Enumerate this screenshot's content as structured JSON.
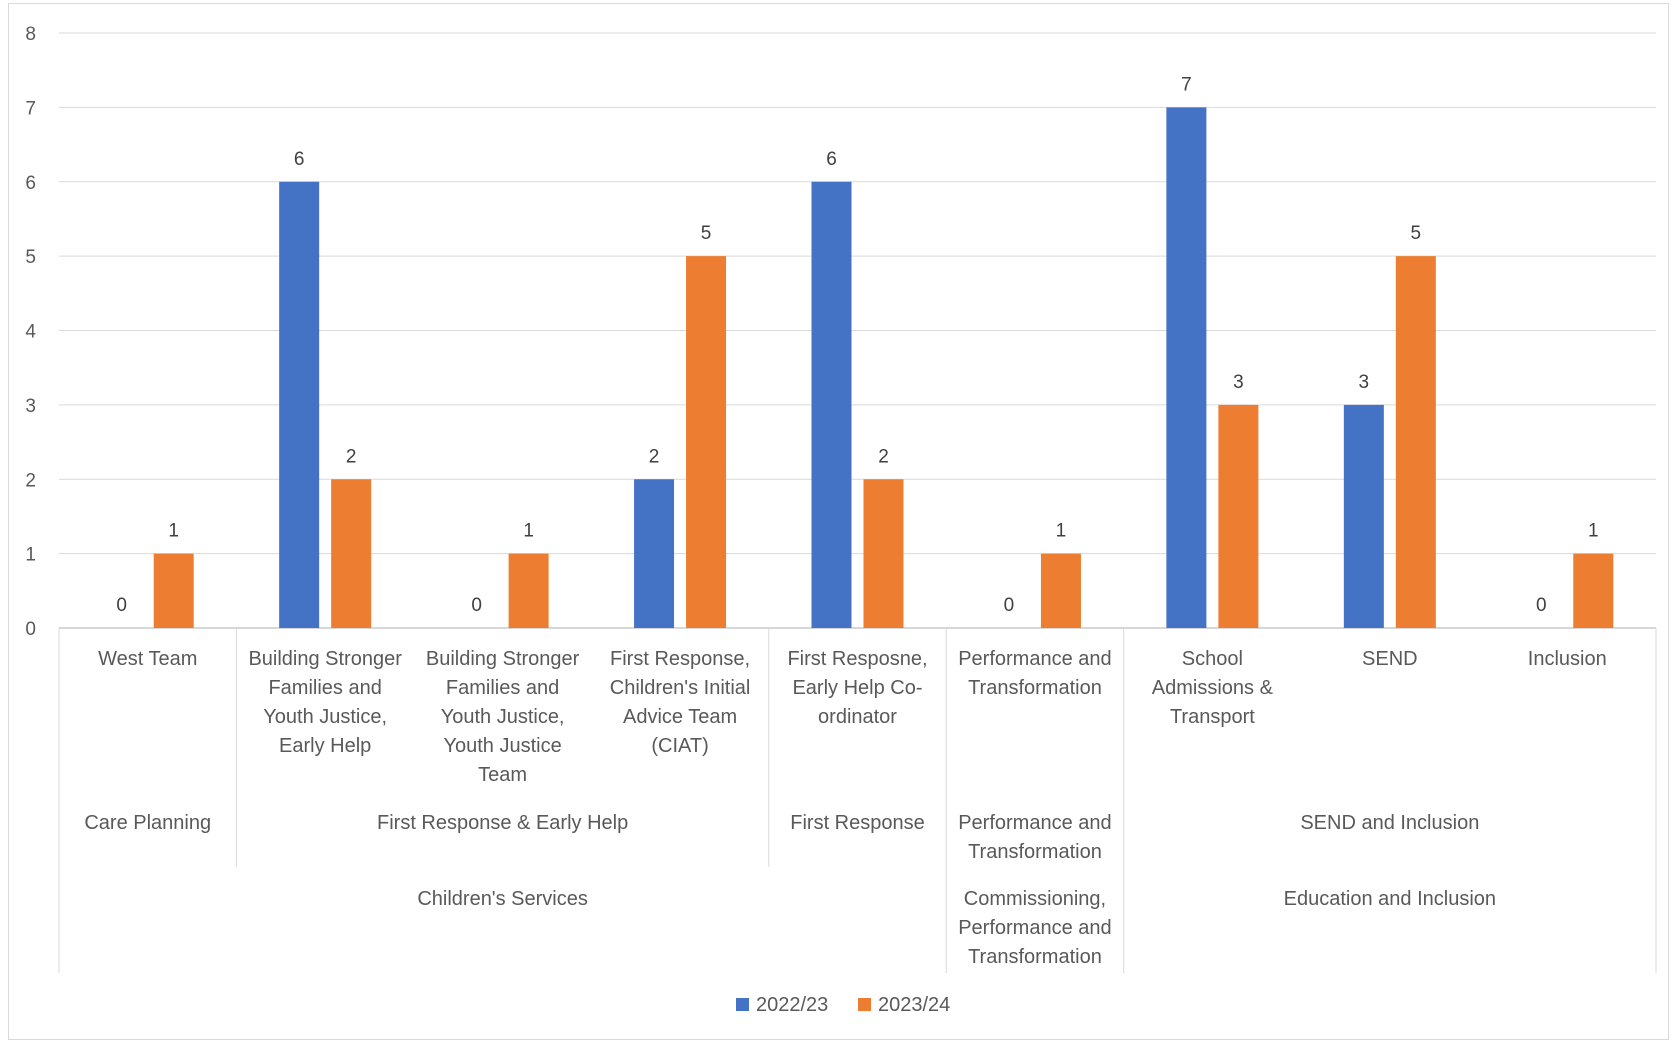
{
  "chart_data": {
    "type": "bar",
    "title": "",
    "xlabel": "",
    "ylabel": "",
    "ylim": [
      0,
      8
    ],
    "yticks": [
      0,
      1,
      2,
      3,
      4,
      5,
      6,
      7,
      8
    ],
    "grid": true,
    "legend_position": "bottom",
    "categories": [
      {
        "label": [
          "West Team"
        ],
        "parent": [
          "Care Planning"
        ]
      },
      {
        "label": [
          "Building Stronger",
          "Families and",
          "Youth Justice,",
          "Early Help"
        ],
        "parent": [
          "First Response & Early Help"
        ]
      },
      {
        "label": [
          "Building Stronger",
          "Families and",
          "Youth Justice,",
          "Youth Justice",
          "Team"
        ],
        "parent": [
          "First Response & Early Help"
        ]
      },
      {
        "label": [
          "First Response,",
          "Children's Initial",
          "Advice Team",
          "(CIAT)"
        ],
        "parent": [
          "First Response & Early Help"
        ]
      },
      {
        "label": [
          "First Resposne,",
          "Early Help Co-",
          "ordinator"
        ],
        "parent": [
          "First Response"
        ]
      },
      {
        "label": [
          "Performance and",
          "Transformation"
        ],
        "parent": [
          "Performance and",
          "Transformation"
        ]
      },
      {
        "label": [
          "School",
          "Admissions &",
          "Transport"
        ],
        "parent": [
          "SEND and Inclusion"
        ]
      },
      {
        "label": [
          "SEND"
        ],
        "parent": [
          "SEND and Inclusion"
        ]
      },
      {
        "label": [
          "Inclusion"
        ],
        "parent": [
          "SEND and Inclusion"
        ]
      }
    ],
    "level2_groups": [
      {
        "label": [
          "Care Planning"
        ],
        "from": 0,
        "to": 0
      },
      {
        "label": [
          "First Response & Early Help"
        ],
        "from": 1,
        "to": 3
      },
      {
        "label": [
          "First Response"
        ],
        "from": 4,
        "to": 4
      },
      {
        "label": [
          "Performance and",
          "Transformation"
        ],
        "from": 5,
        "to": 5
      },
      {
        "label": [
          "SEND and Inclusion"
        ],
        "from": 6,
        "to": 8
      }
    ],
    "level3_groups": [
      {
        "label": [
          "Children's Services"
        ],
        "from": 0,
        "to": 4
      },
      {
        "label": [
          "Commissioning,",
          "Performance and",
          "Transformation"
        ],
        "from": 5,
        "to": 5
      },
      {
        "label": [
          "Education and Inclusion"
        ],
        "from": 6,
        "to": 8
      }
    ],
    "series": [
      {
        "name": "2022/23",
        "color": "#4472c4",
        "values": [
          0,
          6,
          0,
          2,
          6,
          0,
          7,
          3,
          0
        ]
      },
      {
        "name": "2023/24",
        "color": "#ed7d31",
        "values": [
          1,
          2,
          1,
          5,
          2,
          1,
          3,
          5,
          1
        ]
      }
    ]
  }
}
